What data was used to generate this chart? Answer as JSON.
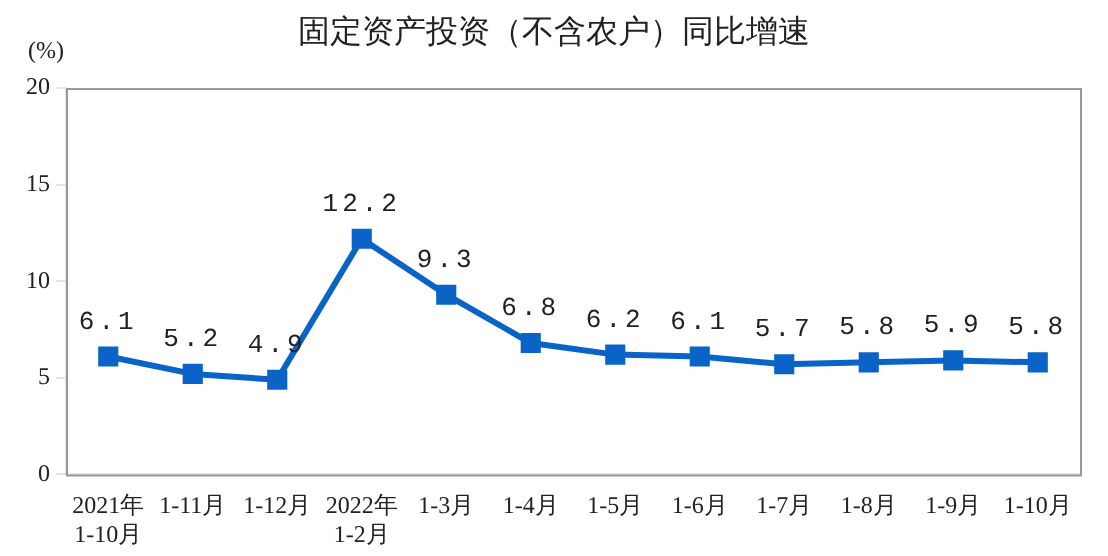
{
  "chart_data": {
    "type": "line",
    "title": "固定资产投资（不含农户）同比增速",
    "ylabel": "(%)",
    "categories": [
      "2021年\n1-10月",
      "1-11月",
      "1-12月",
      "2022年\n1-2月",
      "1-3月",
      "1-4月",
      "1-5月",
      "1-6月",
      "1-7月",
      "1-8月",
      "1-9月",
      "1-10月"
    ],
    "series": [
      {
        "color": "#0a64c8",
        "values": [
          6.1,
          5.2,
          4.9,
          12.2,
          9.3,
          6.8,
          6.2,
          6.1,
          5.7,
          5.8,
          5.9,
          5.8
        ]
      }
    ],
    "ylim": [
      0,
      20
    ],
    "yticks": [
      0,
      5,
      10,
      15,
      20
    ],
    "grid": false,
    "legend": false,
    "marker": "square",
    "line_style": "solid",
    "data_labels": true
  }
}
